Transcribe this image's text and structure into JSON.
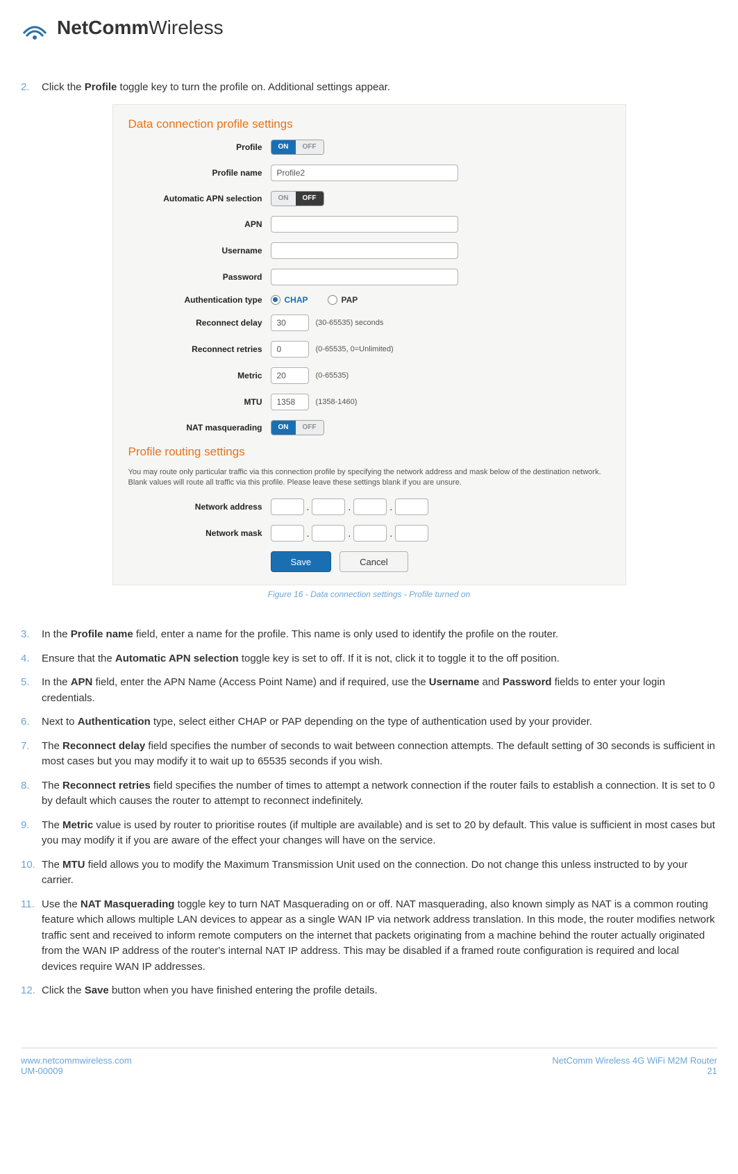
{
  "brand": {
    "bold": "NetComm",
    "light": "Wireless"
  },
  "steps": {
    "s2": {
      "num": "2.",
      "text": "Click the <b>Profile</b> toggle key to turn the profile on. Additional settings appear."
    },
    "s3": {
      "num": "3.",
      "text": "In the <b>Profile name</b> field, enter a name for the profile. This name is only used to identify the profile on the router."
    },
    "s4": {
      "num": "4.",
      "text": "Ensure that the <b>Automatic APN selection</b> toggle key is set to off. If it is not, click it to toggle it to the off position."
    },
    "s5": {
      "num": "5.",
      "text": "In the <b>APN</b> field, enter the APN Name (Access Point Name) and if required, use the <b>Username</b> and <b>Password</b> fields to enter your login credentials."
    },
    "s6": {
      "num": "6.",
      "text": "Next to <b>Authentication</b> type, select either CHAP or PAP depending on the type of authentication used by your provider."
    },
    "s7": {
      "num": "7.",
      "text": "The <b>Reconnect delay</b> field specifies the number of seconds to wait between connection attempts. The default setting of 30 seconds is sufficient in most cases but you may modify it to wait up to 65535 seconds if you wish."
    },
    "s8": {
      "num": "8.",
      "text": "The <b>Reconnect retries</b> field specifies the number of times to attempt a network connection if the router fails to establish a connection. It is set to 0 by default which causes the router to attempt to reconnect indefinitely."
    },
    "s9": {
      "num": "9.",
      "text": "The <b>Metric</b> value is used by router to prioritise routes (if multiple are available) and is set to 20 by default. This value is sufficient in most cases but you may modify it if you are aware of the effect your changes will have on the service."
    },
    "s10": {
      "num": "10.",
      "text": "The <b>MTU</b> field allows you to modify the Maximum Transmission Unit used on the connection. Do not change this unless instructed to by your carrier."
    },
    "s11": {
      "num": "11.",
      "text": "Use the <b>NAT Masquerading</b> toggle key to turn NAT Masquerading on or off. NAT masquerading, also known simply as NAT is a common routing feature which allows multiple LAN devices to appear as a single WAN IP via network address translation. In this mode, the router modifies network traffic sent and received to inform remote computers on the internet that packets originating from a machine behind the router actually originated from the WAN IP address of the router's internal NAT IP address. This may be disabled if a framed route configuration is required and local devices require WAN IP addresses."
    },
    "s12": {
      "num": "12.",
      "text": "Click the <b>Save</b> button when you have finished entering the profile details."
    }
  },
  "caption": "Figure 16 - Data connection settings - Profile turned on",
  "panel": {
    "title1": "Data connection profile settings",
    "title2": "Profile routing settings",
    "labels": {
      "profile": "Profile",
      "profileName": "Profile name",
      "autoApn": "Automatic APN selection",
      "apn": "APN",
      "username": "Username",
      "password": "Password",
      "authType": "Authentication type",
      "reconnectDelay": "Reconnect delay",
      "reconnectRetries": "Reconnect retries",
      "metric": "Metric",
      "mtu": "MTU",
      "natMasq": "NAT masquerading",
      "netAddr": "Network address",
      "netMask": "Network mask"
    },
    "toggleOn": "ON",
    "toggleOff": "OFF",
    "values": {
      "profileName": "Profile2",
      "reconnectDelay": "30",
      "reconnectRetries": "0",
      "metric": "20",
      "mtu": "1358"
    },
    "hints": {
      "reconnectDelay": "(30-65535) seconds",
      "reconnectRetries": "(0-65535, 0=Unlimited)",
      "metric": "(0-65535)",
      "mtu": "(1358-1460)"
    },
    "auth": {
      "chap": "CHAP",
      "pap": "PAP"
    },
    "routingDesc": "You may route only particular traffic via this connection profile by specifying the network address and mask below of the destination network. Blank values will route all traffic via this profile. Please leave these settings blank if you are unsure.",
    "buttons": {
      "save": "Save",
      "cancel": "Cancel"
    }
  },
  "footer": {
    "url": "www.netcommwireless.com",
    "doc": "UM-00009",
    "product": "NetComm Wireless 4G WiFi M2M Router",
    "page": "21"
  }
}
